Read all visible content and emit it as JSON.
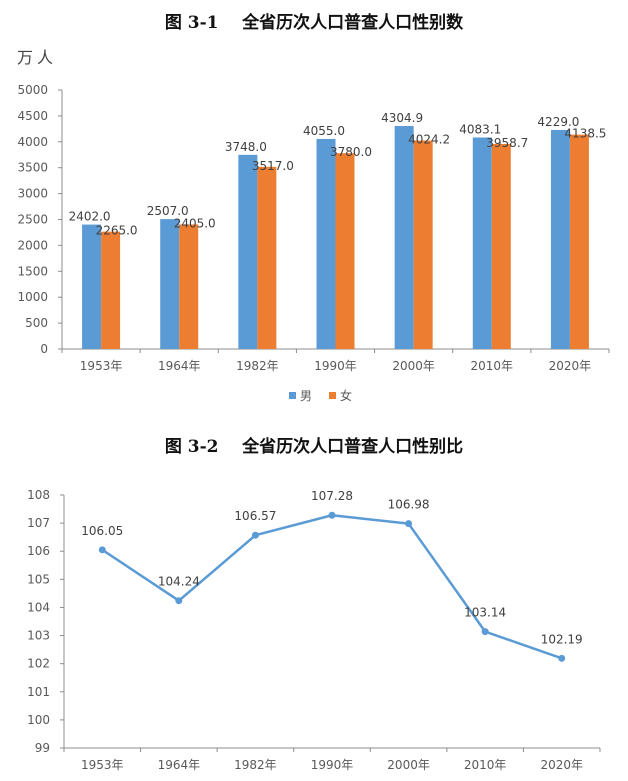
{
  "figure1": {
    "title": "图 3-1    全省历次人口普查人口性别数",
    "unit": "万人",
    "chart_data": {
      "type": "bar",
      "categories": [
        "1953年",
        "1964年",
        "1982年",
        "1990年",
        "2000年",
        "2010年",
        "2020年"
      ],
      "series": [
        {
          "name": "男",
          "color": "#5B9BD5",
          "values": [
            2402.0,
            2507.0,
            3748.0,
            4055.0,
            4304.9,
            4083.1,
            4229.0
          ],
          "labels": [
            "2402.0",
            "2507.0",
            "3748.0",
            "4055.0",
            "4304.9",
            "4083.1",
            "4229.0"
          ]
        },
        {
          "name": "女",
          "color": "#ED7D31",
          "values": [
            2265.0,
            2405.0,
            3517.0,
            3780.0,
            4024.2,
            3958.7,
            4138.5
          ],
          "labels": [
            "2265.0",
            "2405.0",
            "3517.0",
            "3780.0",
            "4024.2",
            "3958.7",
            "4138.5"
          ]
        }
      ],
      "ylim": [
        0,
        5000
      ],
      "yticks": [
        "0",
        "500",
        "1000",
        "1500",
        "2000",
        "2500",
        "3000",
        "3500",
        "4000",
        "4500",
        "5000"
      ],
      "grid": false,
      "legend_position": "bottom"
    }
  },
  "figure2": {
    "title": "图 3-2    全省历次人口普查人口性别比",
    "chart_data": {
      "type": "line",
      "categories": [
        "1953年",
        "1964年",
        "1982年",
        "1990年",
        "2000年",
        "2010年",
        "2020年"
      ],
      "series": [
        {
          "color": "#5B9BD5",
          "values": [
            106.05,
            104.24,
            106.57,
            107.28,
            106.98,
            103.14,
            102.19
          ],
          "labels": [
            "106.05",
            "104.24",
            "106.57",
            "107.28",
            "106.98",
            "103.14",
            "102.19"
          ]
        }
      ],
      "ylim": [
        99,
        108
      ],
      "yticks": [
        "99",
        "100",
        "101",
        "102",
        "103",
        "104",
        "105",
        "106",
        "107",
        "108"
      ],
      "grid": false
    }
  }
}
